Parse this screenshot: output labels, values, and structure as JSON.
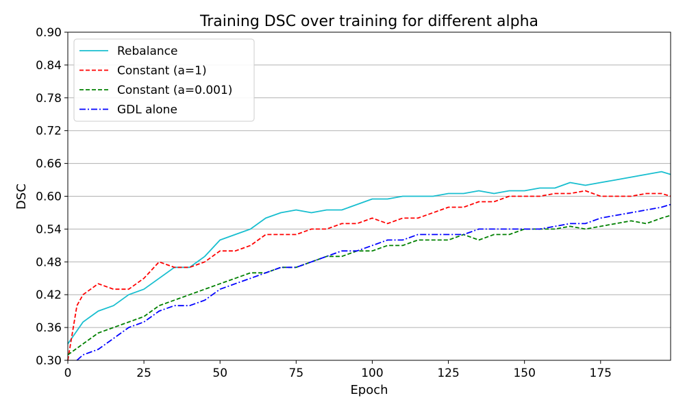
{
  "chart_data": {
    "type": "line",
    "title": "Training DSC over training for different alpha",
    "xlabel": "Epoch",
    "ylabel": "DSC",
    "xlim": [
      0,
      198
    ],
    "ylim": [
      0.3,
      0.9
    ],
    "xticks": [
      0,
      25,
      50,
      75,
      100,
      125,
      150,
      175
    ],
    "yticks": [
      0.3,
      0.36,
      0.42,
      0.48,
      0.54,
      0.6,
      0.66,
      0.72,
      0.78,
      0.84,
      0.9
    ],
    "ytick_labels": [
      "0.30",
      "0.36",
      "0.42",
      "0.48",
      "0.54",
      "0.60",
      "0.66",
      "0.72",
      "0.78",
      "0.84",
      "0.90"
    ],
    "grid": "horizontal",
    "legend_position": "top-left",
    "series": [
      {
        "name": "Rebalance",
        "color": "#17becf",
        "dash": "solid",
        "x": [
          0,
          5,
          10,
          15,
          20,
          25,
          30,
          35,
          40,
          45,
          50,
          55,
          60,
          65,
          70,
          75,
          80,
          85,
          90,
          95,
          100,
          105,
          110,
          115,
          120,
          125,
          130,
          135,
          140,
          145,
          150,
          155,
          160,
          165,
          170,
          175,
          180,
          185,
          190,
          195,
          198
        ],
        "y": [
          0.33,
          0.37,
          0.39,
          0.4,
          0.42,
          0.43,
          0.45,
          0.47,
          0.47,
          0.49,
          0.52,
          0.53,
          0.54,
          0.56,
          0.57,
          0.575,
          0.57,
          0.575,
          0.575,
          0.585,
          0.595,
          0.595,
          0.6,
          0.6,
          0.6,
          0.605,
          0.605,
          0.61,
          0.605,
          0.61,
          0.61,
          0.615,
          0.615,
          0.625,
          0.62,
          0.625,
          0.63,
          0.635,
          0.64,
          0.645,
          0.64
        ]
      },
      {
        "name": "Constant (a=1)",
        "color": "#ff0000",
        "dash": "dashed",
        "x": [
          0,
          3,
          5,
          10,
          15,
          20,
          25,
          30,
          35,
          40,
          45,
          50,
          55,
          60,
          65,
          70,
          75,
          80,
          85,
          90,
          95,
          100,
          105,
          110,
          115,
          120,
          125,
          130,
          135,
          140,
          145,
          150,
          155,
          160,
          165,
          170,
          175,
          180,
          185,
          190,
          195,
          198
        ],
        "y": [
          0.3,
          0.4,
          0.42,
          0.44,
          0.43,
          0.43,
          0.45,
          0.48,
          0.47,
          0.47,
          0.48,
          0.5,
          0.5,
          0.51,
          0.53,
          0.53,
          0.53,
          0.54,
          0.54,
          0.55,
          0.55,
          0.56,
          0.55,
          0.56,
          0.56,
          0.57,
          0.58,
          0.58,
          0.59,
          0.59,
          0.6,
          0.6,
          0.6,
          0.605,
          0.605,
          0.61,
          0.6,
          0.6,
          0.6,
          0.605,
          0.605,
          0.6
        ]
      },
      {
        "name": "Constant (a=0.001)",
        "color": "#008000",
        "dash": "dashed",
        "x": [
          0,
          5,
          10,
          15,
          20,
          25,
          30,
          35,
          40,
          45,
          50,
          55,
          60,
          65,
          70,
          75,
          80,
          85,
          90,
          95,
          100,
          105,
          110,
          115,
          120,
          125,
          130,
          135,
          140,
          145,
          150,
          155,
          160,
          165,
          170,
          175,
          180,
          185,
          190,
          195,
          198
        ],
        "y": [
          0.31,
          0.33,
          0.35,
          0.36,
          0.37,
          0.38,
          0.4,
          0.41,
          0.42,
          0.43,
          0.44,
          0.45,
          0.46,
          0.46,
          0.47,
          0.47,
          0.48,
          0.49,
          0.49,
          0.5,
          0.5,
          0.51,
          0.51,
          0.52,
          0.52,
          0.52,
          0.53,
          0.52,
          0.53,
          0.53,
          0.54,
          0.54,
          0.54,
          0.545,
          0.54,
          0.545,
          0.55,
          0.555,
          0.55,
          0.56,
          0.565
        ]
      },
      {
        "name": "GDL alone",
        "color": "#0000ff",
        "dash": "dashdot",
        "x": [
          3,
          5,
          10,
          15,
          20,
          25,
          30,
          35,
          40,
          45,
          50,
          55,
          60,
          65,
          70,
          75,
          80,
          85,
          90,
          95,
          100,
          105,
          110,
          115,
          120,
          125,
          130,
          135,
          140,
          145,
          150,
          155,
          160,
          165,
          170,
          175,
          180,
          185,
          190,
          195,
          198
        ],
        "y": [
          0.3,
          0.31,
          0.32,
          0.34,
          0.36,
          0.37,
          0.39,
          0.4,
          0.4,
          0.41,
          0.43,
          0.44,
          0.45,
          0.46,
          0.47,
          0.47,
          0.48,
          0.49,
          0.5,
          0.5,
          0.51,
          0.52,
          0.52,
          0.53,
          0.53,
          0.53,
          0.53,
          0.54,
          0.54,
          0.54,
          0.54,
          0.54,
          0.545,
          0.55,
          0.55,
          0.56,
          0.565,
          0.57,
          0.575,
          0.58,
          0.585
        ]
      }
    ]
  }
}
